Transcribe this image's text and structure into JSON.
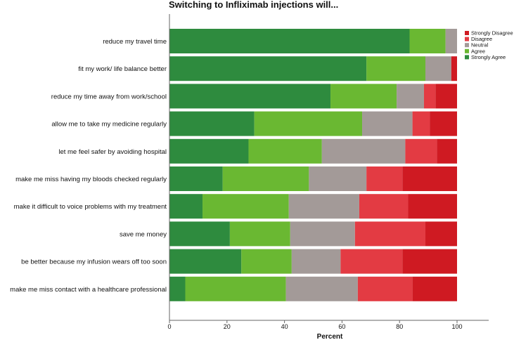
{
  "chart_data": {
    "type": "bar",
    "orientation": "horizontal",
    "stacked": true,
    "title": "Switching to Infliximab injections will...",
    "xlabel": "Percent",
    "ylabel": "",
    "xlim": [
      0,
      100
    ],
    "xticks": [
      0,
      20,
      40,
      60,
      80,
      100
    ],
    "grid": false,
    "legend_position": "right",
    "categories": [
      "reduce my travel time",
      "fit my work/ life balance better",
      "reduce my time away from work/school",
      "allow me to take my medicine regularly",
      "let me feel safer by avoiding hospital",
      "make me miss having my bloods checked regularly",
      "make it difficult to voice problems with my treatment",
      "save me money",
      "be better because my infusion wears off too soon",
      "make me miss contact with a healthcare professional"
    ],
    "series": [
      {
        "name": "Strongly Agree",
        "color": "#2e8b3e",
        "values": [
          83.5,
          68.5,
          56,
          29.5,
          27.5,
          18.5,
          11.5,
          21,
          25,
          5.5
        ]
      },
      {
        "name": "Agree",
        "color": "#6ab832",
        "values": [
          12.5,
          20.5,
          23,
          37.5,
          25.5,
          30,
          30,
          21,
          17.5,
          35
        ]
      },
      {
        "name": "Neutral",
        "color": "#a39a98",
        "values": [
          4,
          9,
          9.5,
          17.5,
          29,
          20,
          24.5,
          22.5,
          17,
          25
        ]
      },
      {
        "name": "Disagree",
        "color": "#e33b43",
        "values": [
          0,
          0,
          4,
          6,
          11,
          12.5,
          17,
          24.5,
          21.5,
          19
        ]
      },
      {
        "name": "Strongly Disagree",
        "color": "#cf1a22",
        "values": [
          0,
          2,
          7.5,
          9.5,
          7,
          19,
          17,
          11,
          19,
          15.5
        ]
      }
    ],
    "legend_order": [
      "Strongly Disagree",
      "Disagree",
      "Neutral",
      "Agree",
      "Strongly Agree"
    ]
  }
}
